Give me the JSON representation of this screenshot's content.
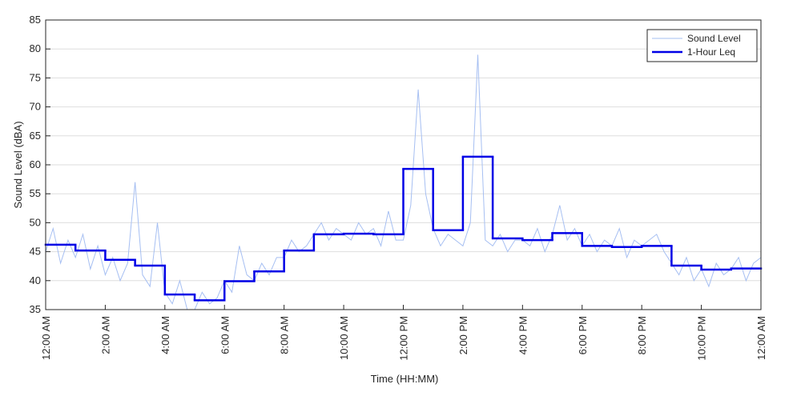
{
  "chart_data": {
    "type": "line",
    "xlabel": "Time (HH:MM)",
    "ylabel": "Sound Level (dBA)",
    "xlim": [
      0,
      24
    ],
    "xticks": [
      {
        "value": 0,
        "label": "12:00 AM"
      },
      {
        "value": 2,
        "label": "2:00 AM"
      },
      {
        "value": 4,
        "label": "4:00 AM"
      },
      {
        "value": 6,
        "label": "6:00 AM"
      },
      {
        "value": 8,
        "label": "8:00 AM"
      },
      {
        "value": 10,
        "label": "10:00 AM"
      },
      {
        "value": 12,
        "label": "12:00 PM"
      },
      {
        "value": 14,
        "label": "2:00 PM"
      },
      {
        "value": 16,
        "label": "4:00 PM"
      },
      {
        "value": 18,
        "label": "6:00 PM"
      },
      {
        "value": 20,
        "label": "8:00 PM"
      },
      {
        "value": 22,
        "label": "10:00 PM"
      },
      {
        "value": 24,
        "label": "12:00 AM"
      }
    ],
    "ylim": [
      35,
      85
    ],
    "yticks": [
      35,
      40,
      45,
      50,
      55,
      60,
      65,
      70,
      75,
      80,
      85
    ],
    "grid": true,
    "legend": "upper right",
    "series": [
      {
        "name": "Sound Level",
        "color": "#a6bff2",
        "style": "line",
        "x": [
          0,
          0.25,
          0.5,
          0.75,
          1,
          1.25,
          1.5,
          1.75,
          2,
          2.25,
          2.5,
          2.75,
          3,
          3.25,
          3.5,
          3.75,
          4,
          4.25,
          4.5,
          4.75,
          5,
          5.25,
          5.5,
          5.75,
          6,
          6.25,
          6.5,
          6.75,
          7,
          7.25,
          7.5,
          7.75,
          8,
          8.25,
          8.5,
          8.75,
          9,
          9.25,
          9.5,
          9.75,
          10,
          10.25,
          10.5,
          10.75,
          11,
          11.25,
          11.5,
          11.75,
          12,
          12.25,
          12.5,
          12.75,
          13,
          13.25,
          13.5,
          13.75,
          14,
          14.25,
          14.5,
          14.75,
          15,
          15.25,
          15.5,
          15.75,
          16,
          16.25,
          16.5,
          16.75,
          17,
          17.25,
          17.5,
          17.75,
          18,
          18.25,
          18.5,
          18.75,
          19,
          19.25,
          19.5,
          19.75,
          20,
          20.25,
          20.5,
          20.75,
          21,
          21.25,
          21.5,
          21.75,
          22,
          22.25,
          22.5,
          22.75,
          23,
          23.25,
          23.5,
          23.75,
          24
        ],
        "values": [
          45,
          49,
          43,
          47,
          44,
          48,
          42,
          46,
          41,
          44,
          40,
          43,
          57,
          41,
          39,
          50,
          38,
          36,
          40,
          35,
          35,
          38,
          36,
          37,
          40,
          38,
          46,
          41,
          40,
          43,
          41,
          44,
          44,
          47,
          45,
          46,
          48,
          50,
          47,
          49,
          48,
          47,
          50,
          48,
          49,
          46,
          52,
          47,
          47,
          53,
          73,
          55,
          49,
          46,
          48,
          47,
          46,
          50,
          79,
          47,
          46,
          48,
          45,
          47,
          47,
          46,
          49,
          45,
          48,
          53,
          47,
          49,
          46,
          48,
          45,
          47,
          46,
          49,
          44,
          47,
          46,
          47,
          48,
          45,
          43,
          41,
          44,
          40,
          42,
          39,
          43,
          41,
          42,
          44,
          40,
          43,
          44
        ]
      },
      {
        "name": "1-Hour Leq",
        "color": "#0000e6",
        "style": "step",
        "x": [
          0,
          1,
          2,
          3,
          4,
          5,
          6,
          7,
          8,
          9,
          10,
          11,
          12,
          13,
          14,
          15,
          16,
          17,
          18,
          19,
          20,
          21,
          22,
          23
        ],
        "values": [
          46.2,
          45.2,
          43.6,
          42.6,
          37.6,
          36.6,
          39.9,
          41.6,
          45.2,
          48.0,
          48.1,
          48.0,
          59.3,
          48.7,
          61.4,
          47.3,
          47.0,
          48.2,
          46.0,
          45.8,
          46.0,
          42.6,
          41.9,
          42.1
        ]
      }
    ]
  }
}
